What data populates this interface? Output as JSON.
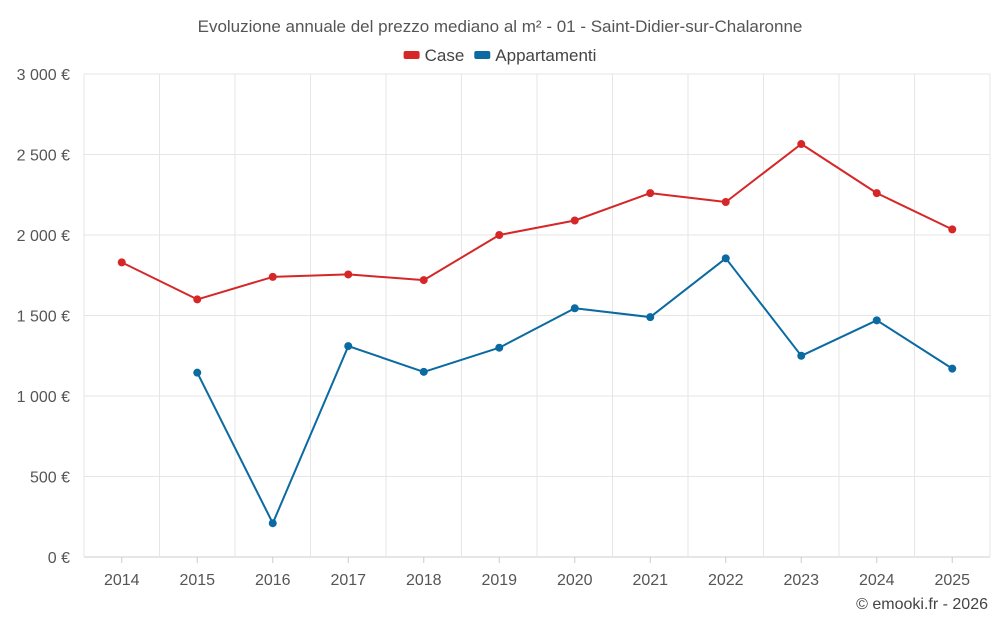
{
  "chart_data": {
    "type": "line",
    "title": "Evoluzione annuale del prezzo mediano al m² - 01 - Saint-Didier-sur-Chalaronne",
    "categories": [
      "2014",
      "2015",
      "2016",
      "2017",
      "2018",
      "2019",
      "2020",
      "2021",
      "2022",
      "2023",
      "2024",
      "2025"
    ],
    "ylim": [
      0,
      3000
    ],
    "yticks": [
      0,
      500,
      1000,
      1500,
      2000,
      2500,
      3000
    ],
    "ytick_labels": [
      "0 €",
      "500 €",
      "1 000 €",
      "1 500 €",
      "2 000 €",
      "2 500 €",
      "3 000 €"
    ],
    "grid": true,
    "legend_position": "top-center",
    "series": [
      {
        "name": "Case",
        "color": "#d62728",
        "values": [
          1830,
          1600,
          1740,
          1755,
          1720,
          2000,
          2090,
          2260,
          2205,
          2565,
          2260,
          2035
        ]
      },
      {
        "name": "Appartamenti",
        "color": "#0a6aa1",
        "values": [
          null,
          1145,
          210,
          1310,
          1150,
          1300,
          1545,
          1490,
          1855,
          1250,
          1470,
          1170
        ]
      }
    ],
    "credit": "© emooki.fr - 2026"
  }
}
